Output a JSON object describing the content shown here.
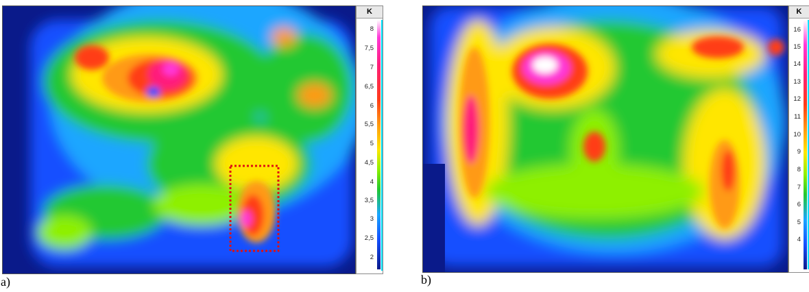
{
  "panel_a": {
    "caption": "a)",
    "scale_unit": "K",
    "ticks": [
      "8",
      "7,5",
      "7",
      "6,5",
      "6",
      "5,5",
      "5",
      "4,5",
      "4",
      "3,5",
      "3",
      "2,5",
      "2"
    ]
  },
  "panel_b": {
    "caption": "b)",
    "scale_unit": "K",
    "ticks": [
      "16",
      "15",
      "14",
      "13",
      "12",
      "11",
      "10",
      "9",
      "8",
      "7",
      "6",
      "5",
      "4"
    ]
  },
  "colors": {
    "background_cold": "#0a1a8a",
    "blue": "#1450ff",
    "green": "#22c830",
    "yellow": "#ffe600",
    "red": "#ff1e3c",
    "magenta": "#ff39d8",
    "white_hot": "#ffffff",
    "marker_box": "#e01010"
  }
}
